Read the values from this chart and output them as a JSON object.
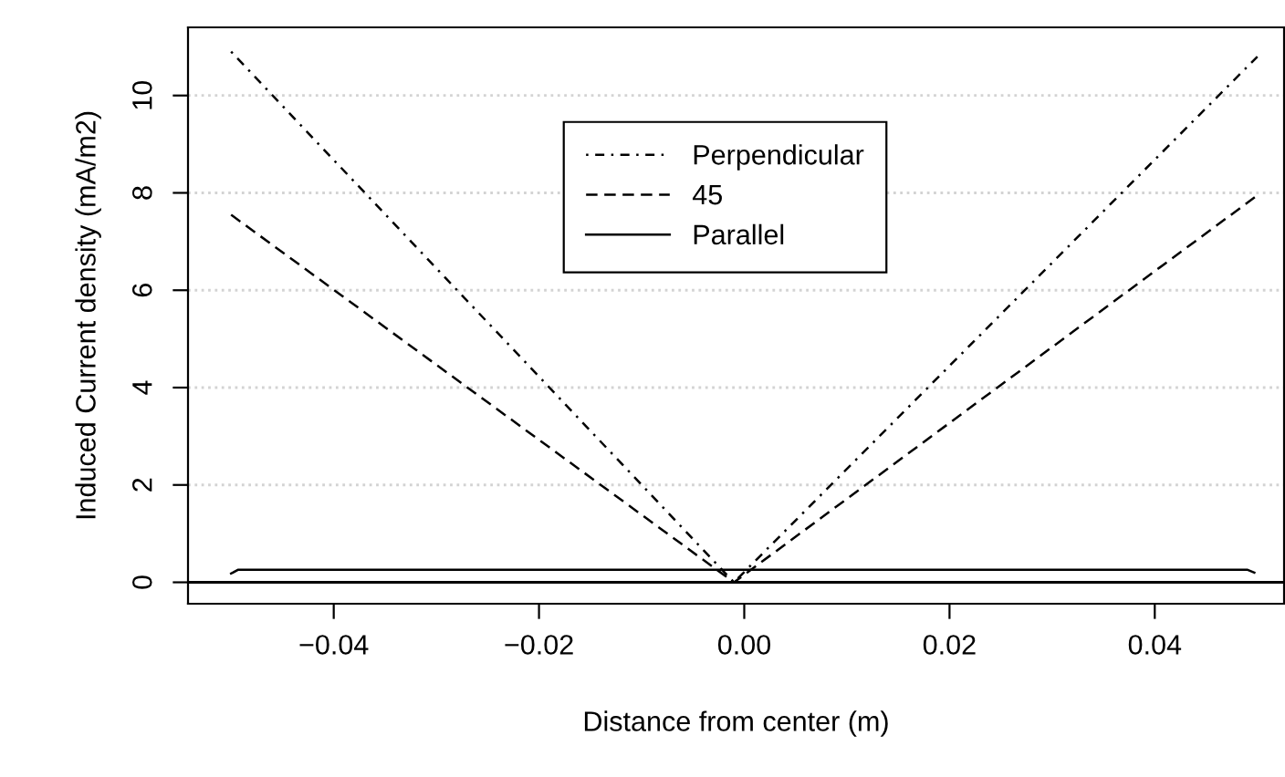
{
  "chart_data": {
    "type": "line",
    "xlabel": "Distance from center (m)",
    "ylabel": "Induced Current density (mA/m2)",
    "series": [
      {
        "name": "Perpendicular",
        "color": "#000000",
        "line_style": "dashdot",
        "x": [
          -0.05,
          -0.001,
          0.05
        ],
        "values": [
          10.9,
          0,
          10.8
        ]
      },
      {
        "name": "45",
        "color": "#000000",
        "line_style": "dashed",
        "x": [
          -0.05,
          -0.001,
          0.05
        ],
        "values": [
          7.55,
          0,
          7.95
        ]
      },
      {
        "name": "Parallel",
        "color": "#000000",
        "line_style": "solid",
        "x": [
          -0.05,
          -0.0493,
          0.049,
          0.0497
        ],
        "values": [
          0.18,
          0.26,
          0.26,
          0.2
        ]
      }
    ],
    "xlim": [
      -0.0542,
      0.0526
    ],
    "ylim": [
      -0.44,
      11.4
    ],
    "xticks": [
      {
        "value": -0.04,
        "label": "−0.04"
      },
      {
        "value": -0.02,
        "label": "−0.02"
      },
      {
        "value": 0,
        "label": "0.00"
      },
      {
        "value": 0.02,
        "label": "0.02"
      },
      {
        "value": 0.04,
        "label": "0.04"
      }
    ],
    "yticks": [
      0,
      2,
      4,
      6,
      8,
      10
    ],
    "ref_lines": [
      {
        "axis": "y",
        "value": 0,
        "color": "#000000",
        "line_style": "solid"
      }
    ],
    "grid": "y",
    "legend": "top",
    "marker": "none"
  }
}
